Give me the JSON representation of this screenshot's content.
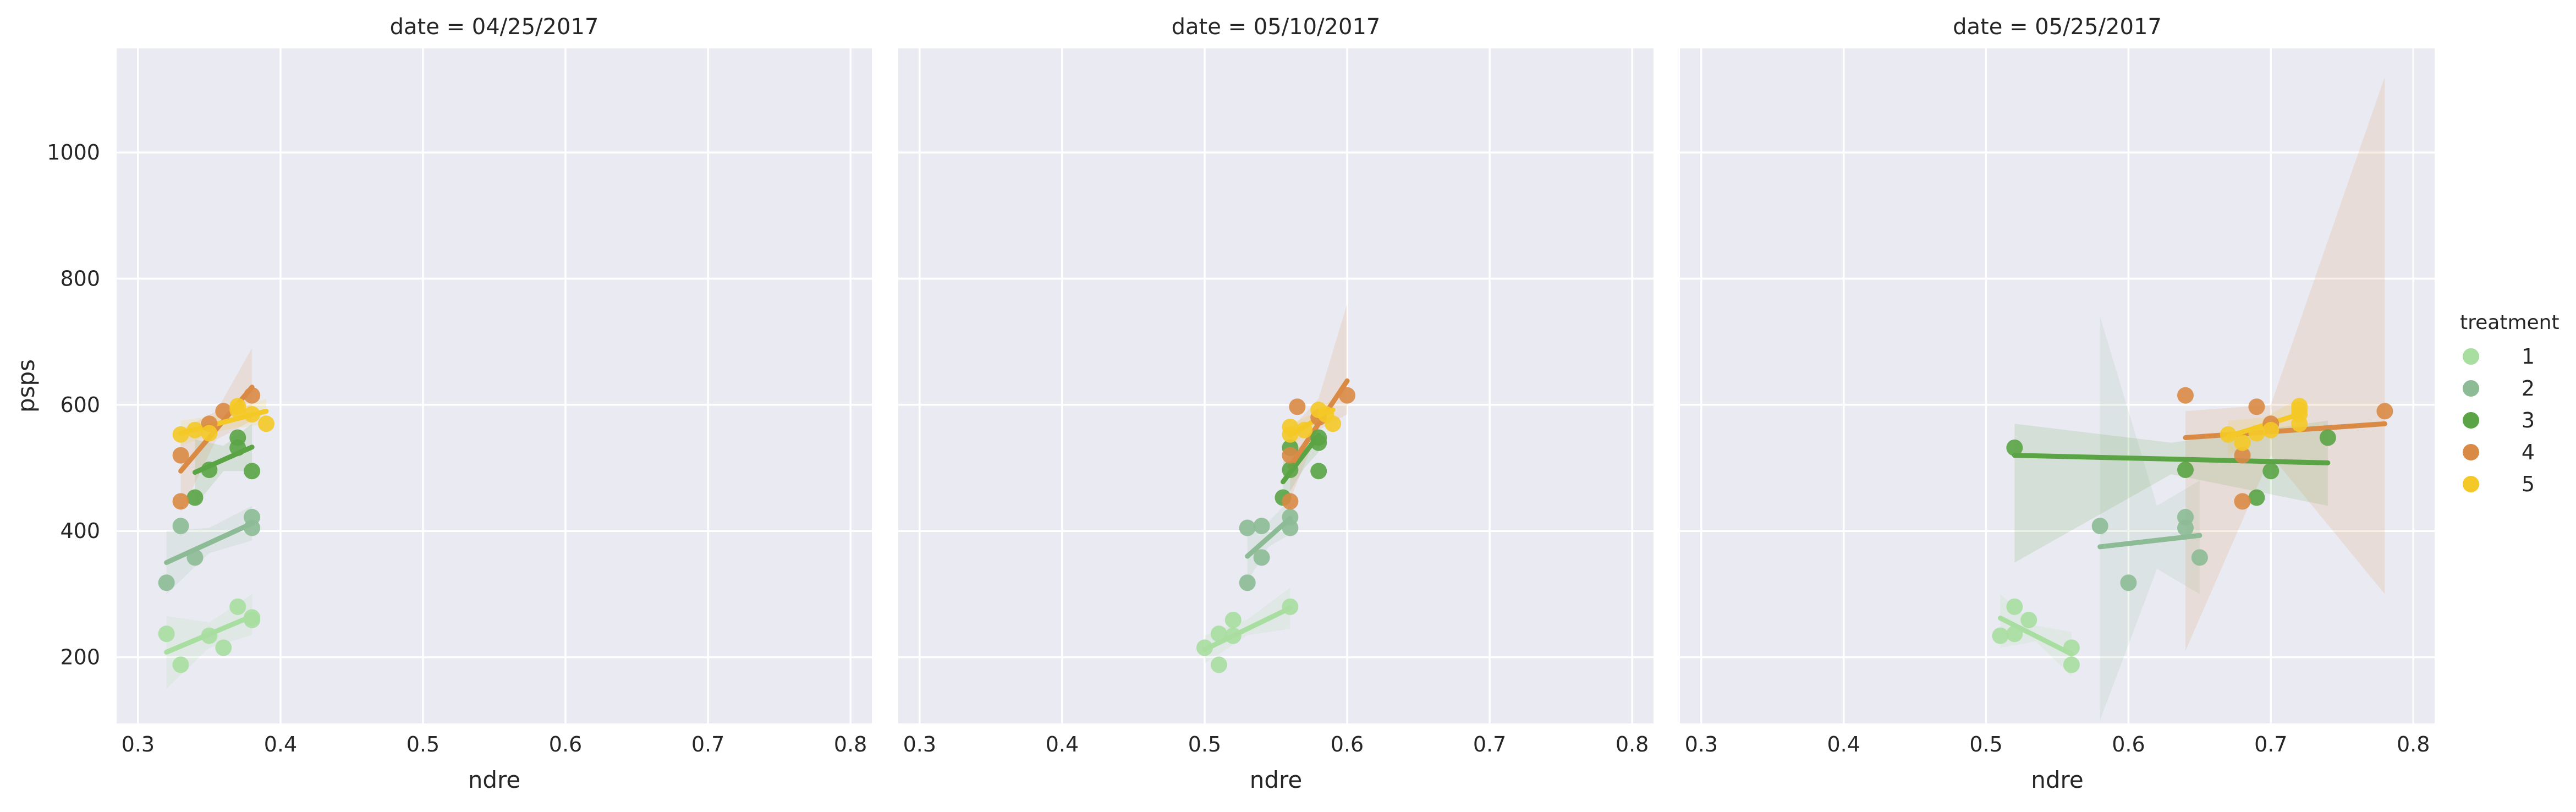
{
  "chart_data": {
    "type": "scatter",
    "ylabel": "psps",
    "xlabel": "ndre",
    "xlim": [
      0.285,
      0.815
    ],
    "ylim": [
      95,
      1165
    ],
    "xticks": [
      0.3,
      0.4,
      0.5,
      0.6,
      0.7,
      0.8
    ],
    "xtick_labels": [
      "0.3",
      "0.4",
      "0.5",
      "0.6",
      "0.7",
      "0.8"
    ],
    "yticks": [
      200,
      400,
      600,
      800,
      1000
    ],
    "ytick_labels": [
      "200",
      "400",
      "600",
      "800",
      "1000"
    ],
    "grid": true,
    "background": "#eaeaf2",
    "legend": {
      "title": "treatment",
      "placement": "center-right",
      "items": [
        {
          "label": "1",
          "color": "#a8dea0"
        },
        {
          "label": "2",
          "color": "#8cbb95"
        },
        {
          "label": "3",
          "color": "#5aa445"
        },
        {
          "label": "4",
          "color": "#d98a45"
        },
        {
          "label": "5",
          "color": "#f4c927"
        }
      ]
    },
    "panels": [
      {
        "title": "date = 04/25/2017",
        "series": [
          {
            "name": "1",
            "points": [
              [
                0.32,
                237
              ],
              [
                0.33,
                188
              ],
              [
                0.35,
                234
              ],
              [
                0.36,
                215
              ],
              [
                0.37,
                280
              ],
              [
                0.38,
                263
              ],
              [
                0.38,
                259
              ]
            ],
            "fit": [
              [
                0.32,
                208
              ],
              [
                0.38,
                265
              ]
            ],
            "band": [
              [
                0.32,
                150,
                265
              ],
              [
                0.35,
                215,
                255
              ],
              [
                0.38,
                235,
                300
              ]
            ]
          },
          {
            "name": "2",
            "points": [
              [
                0.32,
                318
              ],
              [
                0.33,
                408
              ],
              [
                0.34,
                358
              ],
              [
                0.38,
                405
              ],
              [
                0.38,
                422
              ]
            ],
            "fit": [
              [
                0.32,
                350
              ],
              [
                0.38,
                412
              ]
            ],
            "band": [
              [
                0.32,
                300,
                400
              ],
              [
                0.35,
                365,
                405
              ],
              [
                0.38,
                385,
                440
              ]
            ]
          },
          {
            "name": "3",
            "points": [
              [
                0.34,
                453
              ],
              [
                0.35,
                497
              ],
              [
                0.37,
                532
              ],
              [
                0.37,
                548
              ],
              [
                0.38,
                495
              ]
            ],
            "fit": [
              [
                0.34,
                493
              ],
              [
                0.38,
                533
              ]
            ],
            "band": [
              [
                0.34,
                440,
                545
              ],
              [
                0.36,
                495,
                535
              ],
              [
                0.38,
                495,
                570
              ]
            ]
          },
          {
            "name": "4",
            "points": [
              [
                0.33,
                447
              ],
              [
                0.33,
                520
              ],
              [
                0.35,
                570
              ],
              [
                0.36,
                590
              ],
              [
                0.38,
                615
              ]
            ],
            "fit": [
              [
                0.33,
                495
              ],
              [
                0.38,
                628
              ]
            ],
            "band": [
              [
                0.33,
                430,
                560
              ],
              [
                0.355,
                545,
                590
              ],
              [
                0.38,
                575,
                690
              ]
            ]
          },
          {
            "name": "5",
            "points": [
              [
                0.33,
                553
              ],
              [
                0.34,
                560
              ],
              [
                0.35,
                555
              ],
              [
                0.37,
                592
              ],
              [
                0.37,
                598
              ],
              [
                0.38,
                585
              ],
              [
                0.39,
                570
              ]
            ],
            "fit": [
              [
                0.33,
                555
              ],
              [
                0.39,
                590
              ]
            ],
            "band": [
              [
                0.33,
                535,
                575
              ],
              [
                0.36,
                560,
                585
              ],
              [
                0.39,
                570,
                610
              ]
            ]
          }
        ]
      },
      {
        "title": "date = 05/10/2017",
        "series": [
          {
            "name": "1",
            "points": [
              [
                0.5,
                215
              ],
              [
                0.51,
                188
              ],
              [
                0.51,
                237
              ],
              [
                0.52,
                234
              ],
              [
                0.52,
                259
              ],
              [
                0.56,
                280
              ]
            ],
            "fit": [
              [
                0.5,
                212
              ],
              [
                0.56,
                278
              ]
            ],
            "band": [
              [
                0.5,
                190,
                235
              ],
              [
                0.53,
                235,
                260
              ],
              [
                0.56,
                245,
                310
              ]
            ]
          },
          {
            "name": "2",
            "points": [
              [
                0.53,
                318
              ],
              [
                0.53,
                405
              ],
              [
                0.54,
                408
              ],
              [
                0.54,
                358
              ],
              [
                0.56,
                405
              ],
              [
                0.56,
                422
              ]
            ],
            "fit": [
              [
                0.53,
                360
              ],
              [
                0.56,
                420
              ]
            ],
            "band": [
              [
                0.53,
                320,
                400
              ],
              [
                0.545,
                375,
                415
              ],
              [
                0.56,
                395,
                450
              ]
            ]
          },
          {
            "name": "3",
            "points": [
              [
                0.555,
                453
              ],
              [
                0.56,
                532
              ],
              [
                0.56,
                497
              ],
              [
                0.58,
                548
              ],
              [
                0.58,
                540
              ],
              [
                0.58,
                495
              ]
            ],
            "fit": [
              [
                0.555,
                478
              ],
              [
                0.58,
                552
              ]
            ],
            "band": [
              [
                0.555,
                445,
                510
              ],
              [
                0.57,
                500,
                540
              ],
              [
                0.58,
                525,
                580
              ]
            ]
          },
          {
            "name": "4",
            "points": [
              [
                0.56,
                447
              ],
              [
                0.565,
                597
              ],
              [
                0.58,
                580
              ],
              [
                0.6,
                615
              ],
              [
                0.56,
                520
              ]
            ],
            "fit": [
              [
                0.56,
                502
              ],
              [
                0.6,
                638
              ]
            ],
            "band": [
              [
                0.56,
                450,
                560
              ],
              [
                0.58,
                560,
                610
              ],
              [
                0.6,
                585,
                760
              ]
            ]
          },
          {
            "name": "5",
            "points": [
              [
                0.56,
                565
              ],
              [
                0.56,
                553
              ],
              [
                0.57,
                560
              ],
              [
                0.58,
                592
              ],
              [
                0.585,
                585
              ],
              [
                0.59,
                570
              ]
            ],
            "fit": [
              [
                0.56,
                552
              ],
              [
                0.59,
                592
              ]
            ],
            "band": [
              [
                0.56,
                530,
                570
              ],
              [
                0.575,
                565,
                585
              ],
              [
                0.59,
                575,
                610
              ]
            ]
          }
        ]
      },
      {
        "title": "date = 05/25/2017",
        "series": [
          {
            "name": "1",
            "points": [
              [
                0.51,
                234
              ],
              [
                0.52,
                280
              ],
              [
                0.52,
                237
              ],
              [
                0.53,
                259
              ],
              [
                0.56,
                215
              ],
              [
                0.56,
                188
              ]
            ],
            "fit": [
              [
                0.51,
                262
              ],
              [
                0.56,
                205
              ]
            ],
            "band": [
              [
                0.51,
                215,
                300
              ],
              [
                0.535,
                225,
                250
              ],
              [
                0.56,
                170,
                240
              ]
            ]
          },
          {
            "name": "2",
            "points": [
              [
                0.58,
                408
              ],
              [
                0.6,
                318
              ],
              [
                0.64,
                405
              ],
              [
                0.64,
                422
              ],
              [
                0.65,
                358
              ]
            ],
            "fit": [
              [
                0.58,
                375
              ],
              [
                0.65,
                393
              ]
            ],
            "band": [
              [
                0.58,
                100,
                740
              ],
              [
                0.62,
                340,
                440
              ],
              [
                0.65,
                300,
                480
              ]
            ]
          },
          {
            "name": "3",
            "points": [
              [
                0.52,
                532
              ],
              [
                0.64,
                497
              ],
              [
                0.69,
                453
              ],
              [
                0.7,
                495
              ],
              [
                0.74,
                548
              ]
            ],
            "fit": [
              [
                0.52,
                520
              ],
              [
                0.74,
                508
              ]
            ],
            "band": [
              [
                0.52,
                350,
                570
              ],
              [
                0.63,
                490,
                540
              ],
              [
                0.74,
                440,
                575
              ]
            ]
          },
          {
            "name": "4",
            "points": [
              [
                0.64,
                615
              ],
              [
                0.68,
                447
              ],
              [
                0.68,
                520
              ],
              [
                0.69,
                597
              ],
              [
                0.7,
                570
              ],
              [
                0.78,
                590
              ]
            ],
            "fit": [
              [
                0.64,
                548
              ],
              [
                0.78,
                570
              ]
            ],
            "band": [
              [
                0.64,
                210,
                590
              ],
              [
                0.7,
                520,
                600
              ],
              [
                0.78,
                300,
                1120
              ]
            ]
          },
          {
            "name": "5",
            "points": [
              [
                0.67,
                553
              ],
              [
                0.68,
                540
              ],
              [
                0.7,
                560
              ],
              [
                0.72,
                592
              ],
              [
                0.72,
                598
              ],
              [
                0.72,
                585
              ],
              [
                0.72,
                570
              ],
              [
                0.69,
                555
              ]
            ],
            "fit": [
              [
                0.67,
                550
              ],
              [
                0.72,
                585
              ]
            ],
            "band": [
              [
                0.67,
                520,
                575
              ],
              [
                0.695,
                555,
                580
              ],
              [
                0.72,
                570,
                610
              ]
            ]
          }
        ]
      }
    ]
  }
}
